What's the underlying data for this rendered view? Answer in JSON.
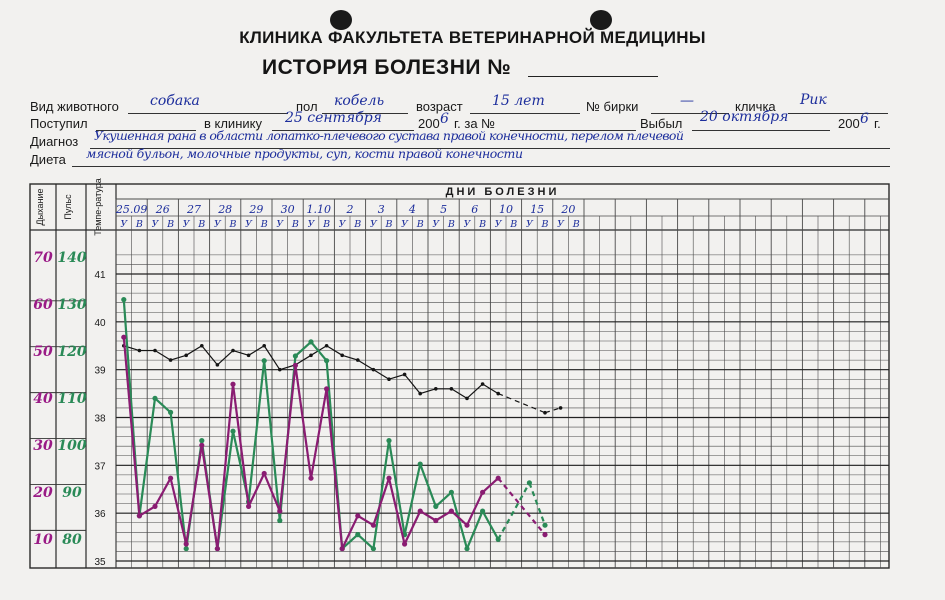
{
  "form": {
    "title": "КЛИНИКА ФАКУЛЬТЕТА ВЕТЕРИНАРНОЙ МЕДИЦИНЫ",
    "subtitle": "ИСТОРИЯ БОЛЕЗНИ №",
    "labels": {
      "animal": "Вид животного",
      "sex": "пол",
      "age": "возраст",
      "tag": "№ бирки",
      "name": "кличка",
      "admitted": "Поступил",
      "to_clinic": "в клинику",
      "year1": "200",
      "year1_suffix": "г. за №",
      "discharged": "Выбыл",
      "year2": "200",
      "year2_suffix": "г.",
      "diagnosis": "Диагноз",
      "diet": "Диета"
    },
    "values": {
      "animal": "собака",
      "sex": "кобель",
      "age": "15 лет",
      "tag": "—",
      "name": "Рик",
      "to_clinic": "25 сентября",
      "year1_digit": "6",
      "discharged": "20 октября",
      "year2_digit": "6",
      "diagnosis": "Укушенная рана в области лопатко-плечевого сустава правой конечности, перелом плечевой",
      "diet": "мясной бульон, молочные продукты, суп, кости правой конечности"
    }
  },
  "chart_data": {
    "type": "line",
    "header": "ДНИ БОЛЕЗНИ",
    "row_labels": {
      "resp": "Дыхание",
      "pulse": "Пульс",
      "temp": "Темпе-ратура"
    },
    "dates": [
      "25.09",
      "26",
      "27",
      "28",
      "29",
      "30",
      "1.10",
      "2",
      "3",
      "4",
      "5",
      "6",
      "10",
      "15",
      "20"
    ],
    "half_labels": [
      "У",
      "В"
    ],
    "x": [
      "25.09 У",
      "25.09 В",
      "26 У",
      "26 В",
      "27 У",
      "27 В",
      "28 У",
      "28 В",
      "29 У",
      "29 В",
      "30 У",
      "30 В",
      "1.10 У",
      "1.10 В",
      "2 У",
      "2 В",
      "3 У",
      "3 В",
      "4 У",
      "4 В",
      "5 У",
      "5 В",
      "6 У",
      "6 В",
      "10 У",
      "10 В",
      "15 У",
      "15 В",
      "20 У",
      "20 В"
    ],
    "resp_ticks": [
      "70",
      "60",
      "50",
      "40",
      "30",
      "20",
      "10"
    ],
    "pulse_ticks": [
      "140",
      "130",
      "120",
      "110",
      "100",
      "90",
      "80"
    ],
    "temp_ticks": [
      "41",
      "40",
      "39",
      "38",
      "37",
      "36",
      "35"
    ],
    "temp_range": [
      35,
      41
    ],
    "series": [
      {
        "key": "temperature",
        "color": "#141414",
        "values": [
          39.5,
          39.4,
          39.4,
          39.2,
          39.3,
          39.5,
          39.1,
          39.4,
          39.3,
          39.5,
          39.0,
          39.1,
          39.3,
          39.5,
          39.3,
          39.2,
          39.0,
          38.8,
          38.9,
          38.5,
          38.6,
          38.6,
          38.4,
          38.7,
          38.5,
          null,
          null,
          38.1,
          38.2,
          null
        ],
        "dashed_from": 24
      },
      {
        "key": "pulse",
        "color": "#2a8a57",
        "values": [
          132,
          86,
          111,
          108,
          79,
          102,
          79,
          104,
          89,
          119,
          85,
          120,
          123,
          119,
          79,
          82,
          79,
          102,
          82,
          97,
          88,
          91,
          79,
          87,
          81,
          null,
          93,
          84,
          null,
          null
        ],
        "dashed_from": 24
      },
      {
        "key": "respiration",
        "color": "#8a1c72",
        "values": [
          54,
          16,
          18,
          24,
          10,
          31,
          9,
          44,
          18,
          25,
          17,
          48,
          24,
          43,
          9,
          16,
          14,
          24,
          10,
          17,
          15,
          17,
          14,
          21,
          24,
          null,
          null,
          12,
          null,
          null
        ],
        "dashed_from": 24
      }
    ]
  }
}
